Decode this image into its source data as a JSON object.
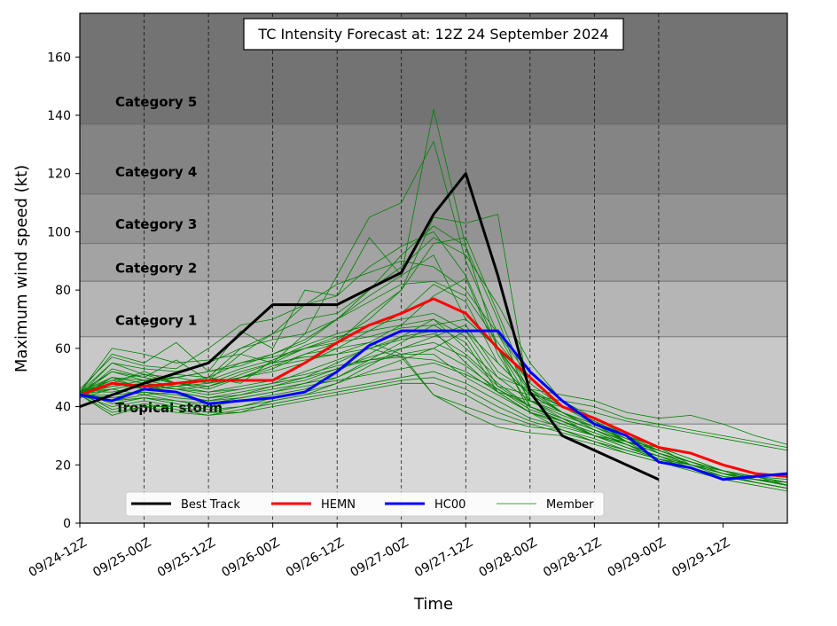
{
  "chart_data": {
    "type": "line",
    "title": "TC Intensity Forecast at: 12Z 24 September 2024",
    "xlabel": "Time",
    "ylabel": "Maximum wind speed (kt)",
    "ylim": [
      0,
      175
    ],
    "yticks": [
      0,
      20,
      40,
      60,
      80,
      100,
      120,
      140,
      160
    ],
    "xticks": [
      "09/24-12Z",
      "09/25-00Z",
      "09/25-12Z",
      "09/26-00Z",
      "09/26-12Z",
      "09/27-00Z",
      "09/27-12Z",
      "09/28-00Z",
      "09/28-12Z",
      "09/29-00Z",
      "09/29-12Z"
    ],
    "x_unit_note": "x values are hours since 09/24-12Z",
    "grid": "vertical dashed",
    "legend_position": "bottom",
    "bands": [
      {
        "label": "",
        "from": 0,
        "to": 34,
        "color": "#d8d8d8"
      },
      {
        "label": "Tropical storm",
        "from": 34,
        "to": 64,
        "color": "#c8c8c8"
      },
      {
        "label": "Category 1",
        "from": 64,
        "to": 83,
        "color": "#b5b5b5"
      },
      {
        "label": "Category 2",
        "from": 83,
        "to": 96,
        "color": "#a3a3a3"
      },
      {
        "label": "Category 3",
        "from": 96,
        "to": 113,
        "color": "#939393"
      },
      {
        "label": "Category 4",
        "from": 113,
        "to": 137,
        "color": "#848484"
      },
      {
        "label": "Category 5",
        "from": 137,
        "to": 175,
        "color": "#737373"
      }
    ],
    "series": [
      {
        "name": "Best Track",
        "color": "#000000",
        "width": 3,
        "x": [
          0,
          12,
          24,
          36,
          48,
          60,
          66,
          72,
          78,
          84,
          90,
          96,
          108
        ],
        "y": [
          40,
          48,
          55,
          75,
          75,
          86,
          106,
          120,
          85,
          45,
          30,
          25,
          15
        ]
      },
      {
        "name": "HEMN",
        "color": "#ff0000",
        "width": 3,
        "x": [
          0,
          6,
          12,
          18,
          24,
          30,
          36,
          42,
          48,
          54,
          60,
          66,
          72,
          78,
          84,
          90,
          96,
          102,
          108,
          114,
          120,
          126,
          132
        ],
        "y": [
          44,
          48,
          47,
          48,
          49,
          49,
          49,
          55,
          62,
          68,
          72,
          77,
          72,
          60,
          50,
          40,
          36,
          31,
          26,
          24,
          20,
          17,
          16
        ]
      },
      {
        "name": "HC00",
        "color": "#0000ff",
        "width": 3,
        "x": [
          0,
          6,
          12,
          18,
          24,
          30,
          36,
          42,
          48,
          54,
          60,
          66,
          72,
          78,
          84,
          90,
          96,
          102,
          108,
          114,
          120,
          126,
          132
        ],
        "y": [
          44,
          42,
          46,
          45,
          41,
          42,
          43,
          45,
          52,
          61,
          66,
          66,
          66,
          66,
          52,
          42,
          34,
          30,
          21,
          19,
          15,
          16,
          17
        ]
      }
    ],
    "members_label": "Member",
    "members_color": "#008000",
    "members": [
      [
        45,
        58,
        55,
        62,
        52,
        66,
        60,
        80,
        78,
        98,
        85,
        142,
        95,
        60,
        45,
        38,
        32,
        28,
        26,
        20,
        17,
        14,
        12
      ],
      [
        44,
        52,
        50,
        56,
        49,
        58,
        55,
        65,
        85,
        105,
        110,
        131,
        90,
        65,
        45,
        40,
        35,
        30,
        26,
        22,
        18,
        15,
        13
      ],
      [
        45,
        48,
        52,
        48,
        50,
        48,
        56,
        60,
        62,
        72,
        80,
        105,
        103,
        106,
        42,
        36,
        30,
        28,
        25,
        21,
        18,
        16,
        13
      ],
      [
        44,
        46,
        48,
        50,
        52,
        55,
        58,
        63,
        70,
        80,
        92,
        102,
        95,
        70,
        40,
        35,
        30,
        27,
        22,
        20,
        16,
        14,
        12
      ],
      [
        43,
        50,
        46,
        48,
        50,
        60,
        65,
        75,
        78,
        88,
        95,
        100,
        85,
        60,
        38,
        32,
        28,
        25,
        22,
        19,
        16,
        15,
        14
      ],
      [
        45,
        60,
        58,
        55,
        56,
        58,
        65,
        70,
        72,
        80,
        88,
        98,
        92,
        75,
        55,
        42,
        36,
        30,
        24,
        20,
        17,
        16,
        15
      ],
      [
        46,
        57,
        54,
        53,
        60,
        68,
        70,
        75,
        82,
        86,
        90,
        88,
        80,
        65,
        50,
        40,
        35,
        28,
        24,
        21,
        18,
        15,
        14
      ],
      [
        44,
        55,
        53,
        52,
        55,
        60,
        63,
        65,
        70,
        76,
        82,
        83,
        78,
        62,
        48,
        40,
        34,
        29,
        25,
        21,
        18,
        15,
        13
      ],
      [
        45,
        50,
        49,
        51,
        50,
        55,
        57,
        60,
        63,
        70,
        80,
        96,
        98,
        72,
        46,
        38,
        32,
        28,
        24,
        20,
        17,
        14,
        12
      ],
      [
        44,
        47,
        49,
        50,
        52,
        54,
        58,
        62,
        70,
        78,
        85,
        92,
        70,
        60,
        42,
        38,
        34,
        28,
        22,
        19,
        16,
        14,
        12
      ],
      [
        45,
        49,
        51,
        48,
        47,
        50,
        52,
        55,
        60,
        66,
        72,
        82,
        76,
        55,
        44,
        38,
        33,
        28,
        25,
        21,
        18,
        15,
        13
      ],
      [
        43,
        46,
        48,
        47,
        48,
        50,
        54,
        56,
        58,
        62,
        68,
        78,
        84,
        58,
        40,
        36,
        32,
        27,
        23,
        19,
        16,
        14,
        12
      ],
      [
        45,
        42,
        44,
        42,
        40,
        42,
        44,
        46,
        50,
        56,
        62,
        68,
        70,
        60,
        46,
        40,
        35,
        30,
        25,
        21,
        17,
        15,
        13
      ],
      [
        44,
        40,
        42,
        40,
        38,
        38,
        42,
        44,
        48,
        52,
        56,
        60,
        66,
        55,
        44,
        38,
        34,
        28,
        24,
        20,
        17,
        15,
        14
      ],
      [
        45,
        42,
        43,
        41,
        39,
        40,
        43,
        45,
        48,
        54,
        60,
        64,
        68,
        52,
        45,
        40,
        36,
        30,
        26,
        22,
        18,
        16,
        14
      ],
      [
        44,
        44,
        45,
        44,
        42,
        43,
        45,
        48,
        52,
        58,
        64,
        70,
        60,
        50,
        42,
        37,
        33,
        29,
        25,
        21,
        18,
        15,
        13
      ],
      [
        45,
        46,
        44,
        45,
        43,
        44,
        47,
        50,
        55,
        60,
        63,
        65,
        58,
        48,
        40,
        35,
        30,
        26,
        22,
        19,
        16,
        14,
        12
      ],
      [
        44,
        48,
        46,
        47,
        45,
        46,
        48,
        52,
        56,
        60,
        64,
        66,
        55,
        45,
        38,
        34,
        30,
        27,
        23,
        20,
        17,
        15,
        13
      ],
      [
        45,
        45,
        47,
        45,
        43,
        45,
        47,
        49,
        53,
        57,
        60,
        62,
        57,
        47,
        40,
        36,
        32,
        28,
        24,
        20,
        17,
        15,
        14
      ],
      [
        44,
        43,
        45,
        43,
        42,
        44,
        46,
        48,
        50,
        55,
        58,
        60,
        54,
        46,
        39,
        35,
        31,
        27,
        23,
        20,
        17,
        15,
        13
      ],
      [
        45,
        47,
        48,
        46,
        44,
        46,
        48,
        50,
        53,
        56,
        58,
        58,
        50,
        44,
        38,
        34,
        30,
        26,
        22,
        19,
        16,
        14,
        12
      ],
      [
        44,
        49,
        47,
        46,
        45,
        47,
        49,
        51,
        54,
        56,
        57,
        56,
        52,
        45,
        38,
        35,
        31,
        27,
        23,
        20,
        17,
        15,
        13
      ],
      [
        45,
        41,
        43,
        42,
        41,
        43,
        45,
        47,
        49,
        51,
        53,
        55,
        51,
        46,
        40,
        36,
        32,
        28,
        24,
        21,
        18,
        16,
        14
      ],
      [
        44,
        38,
        40,
        40,
        38,
        40,
        42,
        44,
        46,
        48,
        50,
        52,
        48,
        42,
        36,
        33,
        30,
        26,
        23,
        20,
        17,
        15,
        13
      ],
      [
        45,
        39,
        41,
        39,
        37,
        39,
        41,
        43,
        45,
        47,
        49,
        50,
        46,
        40,
        35,
        32,
        29,
        25,
        22,
        19,
        16,
        14,
        12
      ],
      [
        44,
        37,
        40,
        38,
        37,
        38,
        40,
        42,
        44,
        46,
        48,
        48,
        44,
        38,
        34,
        31,
        28,
        24,
        21,
        18,
        15,
        13,
        11
      ],
      [
        45,
        55,
        51,
        50,
        48,
        52,
        55,
        57,
        58,
        60,
        57,
        44,
        40,
        36,
        33,
        32,
        28,
        25,
        22,
        20,
        18,
        15,
        13
      ],
      [
        44,
        53,
        50,
        48,
        47,
        50,
        54,
        58,
        60,
        62,
        58,
        44,
        38,
        33,
        31,
        30,
        27,
        24,
        21,
        19,
        16,
        14,
        12
      ],
      [
        45,
        52,
        49,
        47,
        49,
        53,
        56,
        61,
        65,
        68,
        70,
        72,
        66,
        50,
        46,
        44,
        42,
        38,
        36,
        37,
        34,
        30,
        27
      ],
      [
        44,
        50,
        48,
        46,
        47,
        51,
        55,
        60,
        64,
        66,
        68,
        70,
        64,
        47,
        44,
        42,
        40,
        36,
        34,
        32,
        30,
        28,
        26
      ],
      [
        45,
        48,
        47,
        48,
        46,
        50,
        53,
        58,
        62,
        64,
        67,
        68,
        62,
        45,
        42,
        40,
        38,
        35,
        33,
        31,
        29,
        27,
        25
      ]
    ],
    "member_x_step_hours": 6
  }
}
